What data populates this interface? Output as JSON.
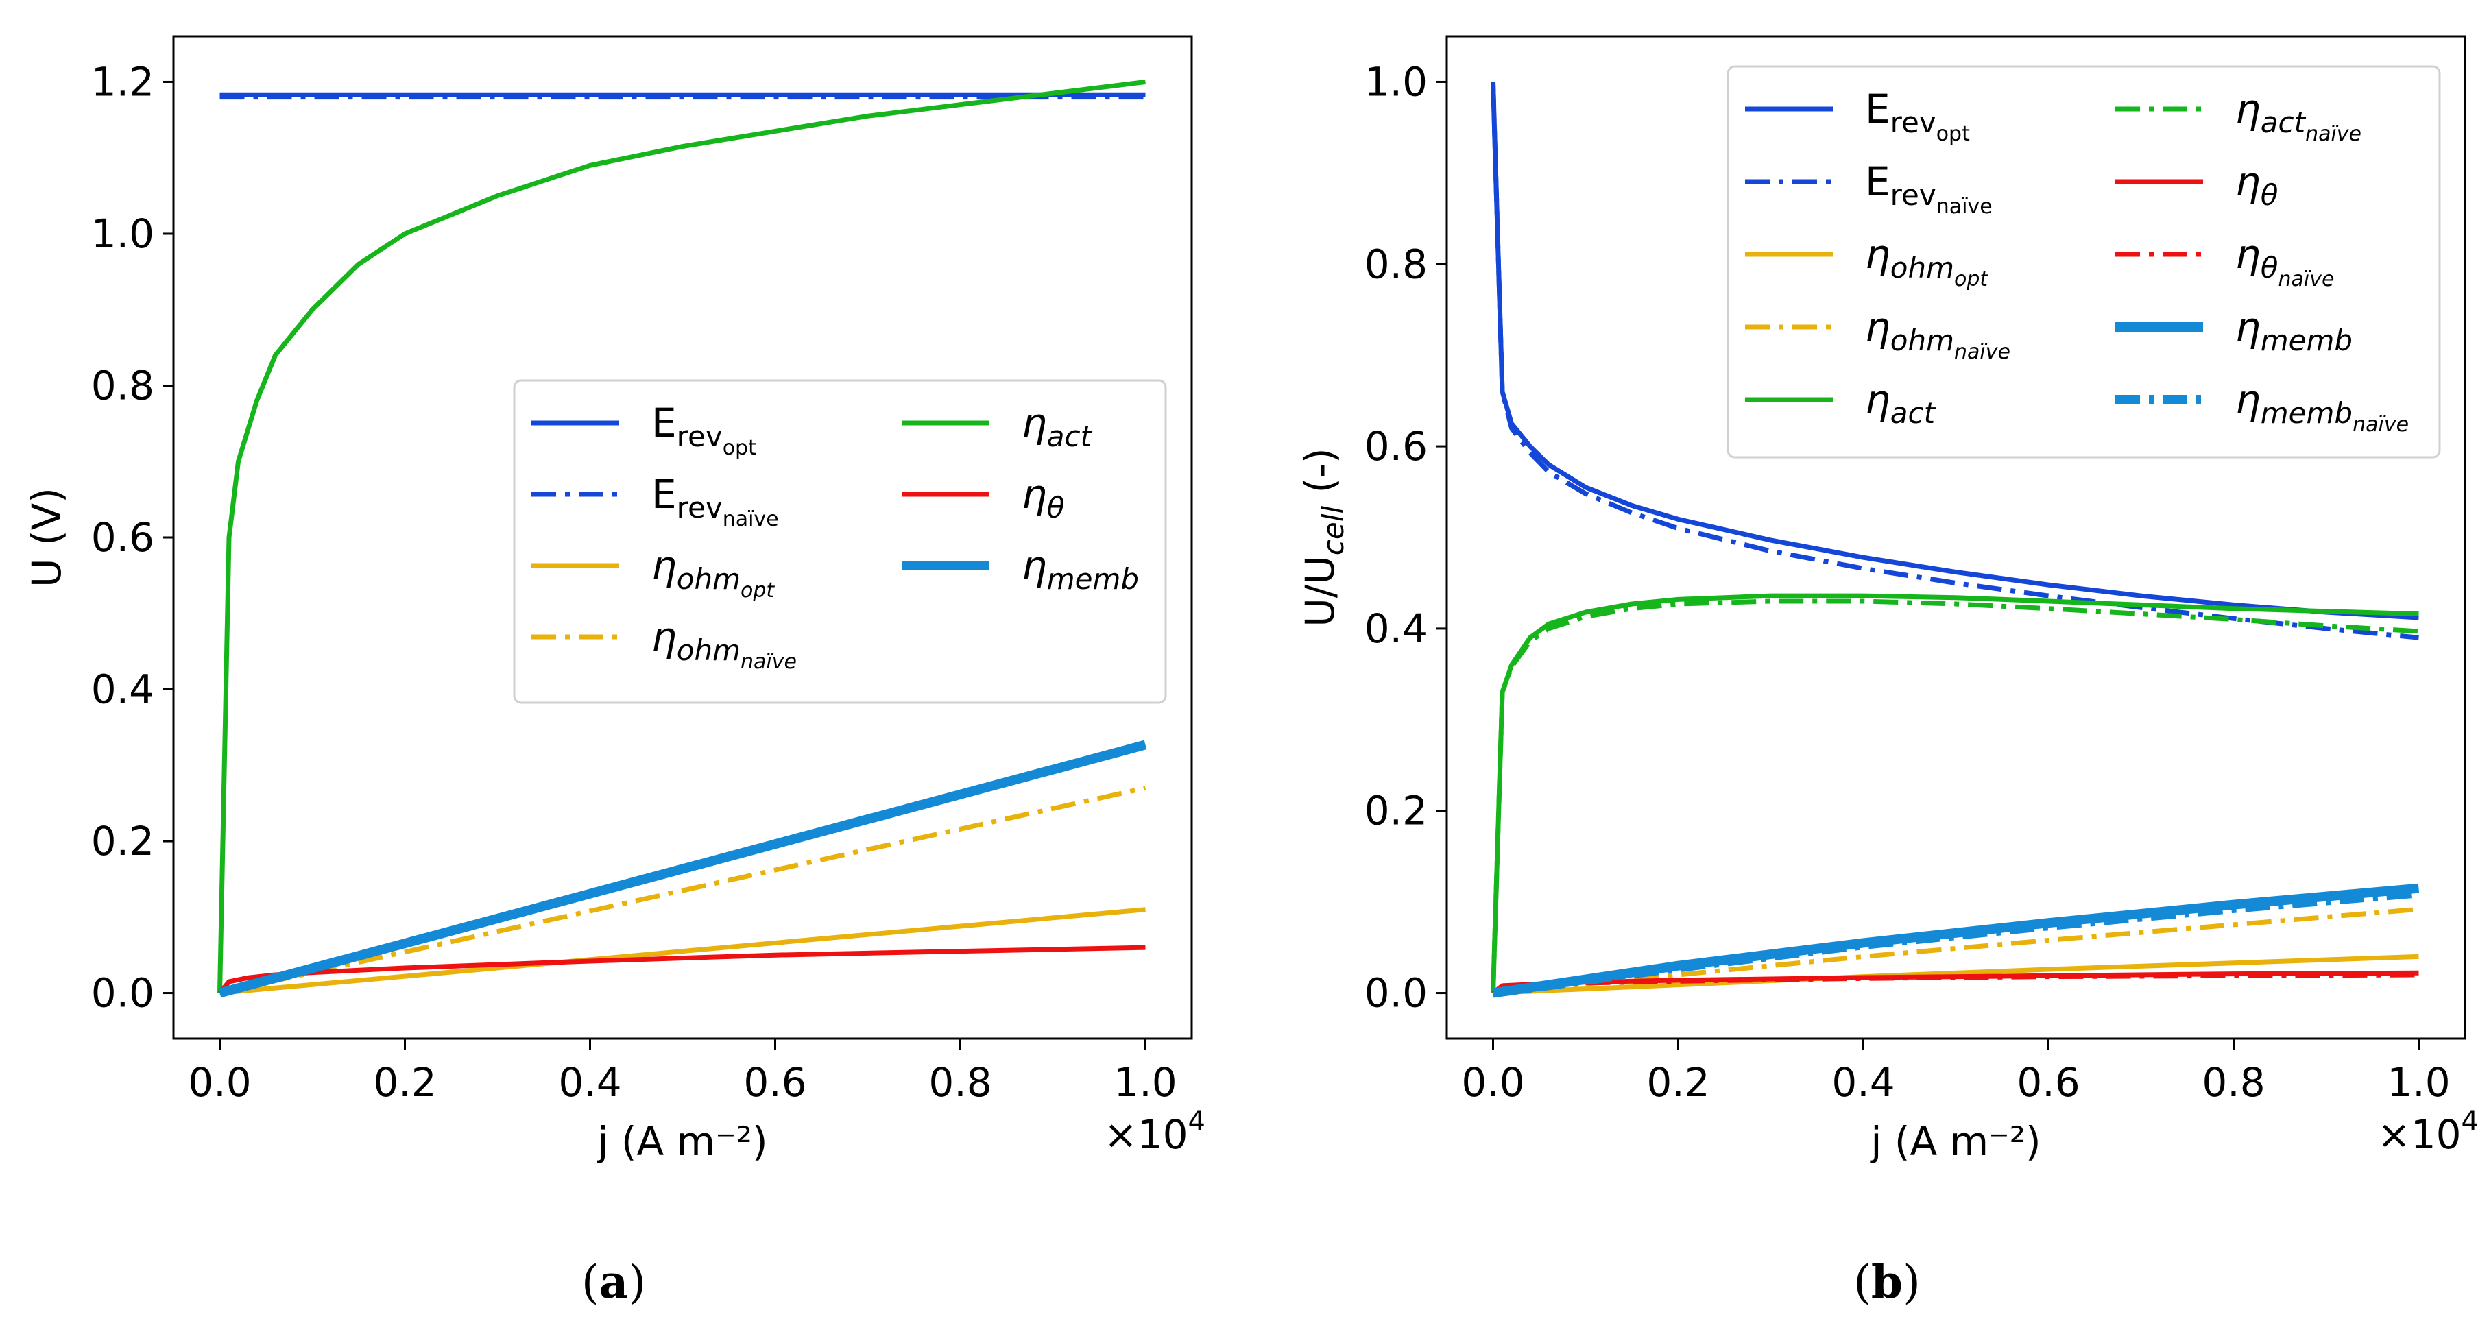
{
  "colors": {
    "e_rev": "#1446d8",
    "eta_ohm": "#e8b10b",
    "eta_act": "#16b51c",
    "eta_theta": "#ee1111",
    "eta_memb": "#148ad6"
  },
  "chart_data": [
    {
      "type": "line",
      "panel_label": "(a)",
      "caption": {
        "open": "(",
        "letter": "a",
        "close": ")"
      },
      "xlabel": "j (A m⁻²)",
      "ylabel": "U (V)",
      "x_multiplier": "×10",
      "x_multiplier_exp": "4",
      "xlim": [
        -0.05,
        1.05
      ],
      "ylim": [
        -0.06,
        1.26
      ],
      "xticks": [
        0.0,
        0.2,
        0.4,
        0.6,
        0.8,
        1.0
      ],
      "xtick_labels": [
        "0.0",
        "0.2",
        "0.4",
        "0.6",
        "0.8",
        "1.0"
      ],
      "yticks": [
        0.0,
        0.2,
        0.4,
        0.6,
        0.8,
        1.0,
        1.2
      ],
      "ytick_labels": [
        "0.0",
        "0.2",
        "0.4",
        "0.6",
        "0.8",
        "1.0",
        "1.2"
      ],
      "legend_position": "center-right",
      "legend": [
        {
          "series": "E_rev_opt",
          "base": "E",
          "sub": "rev",
          "subsub": "opt"
        },
        {
          "series": "E_rev_naive",
          "base": "E",
          "sub": "rev",
          "subsub": "naïve"
        },
        {
          "series": "eta_ohm_opt",
          "base": "η",
          "sub": "ohm",
          "subsub": "opt"
        },
        {
          "series": "eta_ohm_naive",
          "base": "η",
          "sub": "ohm",
          "subsub": "naïve"
        },
        {
          "series": "eta_act",
          "base": "η",
          "sub": "act",
          "subsub": ""
        },
        {
          "series": "eta_theta",
          "base": "η",
          "sub": "θ",
          "subsub": ""
        },
        {
          "series": "eta_memb",
          "base": "η",
          "sub": "memb",
          "subsub": ""
        }
      ],
      "series": [
        {
          "name": "E_rev_opt",
          "color_key": "e_rev",
          "style": "solid",
          "width": "normal",
          "x": [
            0.0,
            1.0
          ],
          "y": [
            1.183,
            1.183
          ]
        },
        {
          "name": "E_rev_naive",
          "color_key": "e_rev",
          "style": "dashdot",
          "width": "normal",
          "x": [
            0.0,
            1.0
          ],
          "y": [
            1.18,
            1.18
          ]
        },
        {
          "name": "eta_ohm_opt",
          "color_key": "eta_ohm",
          "style": "solid",
          "width": "normal",
          "x": [
            0.0,
            1.0
          ],
          "y": [
            0.0,
            0.11
          ]
        },
        {
          "name": "eta_ohm_naive",
          "color_key": "eta_ohm",
          "style": "dashdot",
          "width": "normal",
          "x": [
            0.0,
            1.0
          ],
          "y": [
            0.0,
            0.27
          ]
        },
        {
          "name": "eta_act",
          "color_key": "eta_act",
          "style": "solid",
          "width": "normal",
          "x": [
            0.0,
            0.01,
            0.02,
            0.04,
            0.06,
            0.1,
            0.15,
            0.2,
            0.3,
            0.4,
            0.5,
            0.6,
            0.7,
            0.8,
            0.9,
            1.0
          ],
          "y": [
            0.0,
            0.6,
            0.7,
            0.78,
            0.84,
            0.9,
            0.96,
            1.0,
            1.05,
            1.09,
            1.115,
            1.135,
            1.155,
            1.17,
            1.185,
            1.2
          ]
        },
        {
          "name": "eta_theta",
          "color_key": "eta_theta",
          "style": "solid",
          "width": "normal",
          "x": [
            0.0,
            0.01,
            0.03,
            0.06,
            0.1,
            0.2,
            0.4,
            0.6,
            0.8,
            1.0
          ],
          "y": [
            0.0,
            0.015,
            0.02,
            0.024,
            0.027,
            0.033,
            0.042,
            0.05,
            0.055,
            0.06
          ]
        },
        {
          "name": "eta_memb",
          "color_key": "eta_memb",
          "style": "solid",
          "width": "thick",
          "x": [
            0.0,
            1.0
          ],
          "y": [
            0.0,
            0.327
          ]
        }
      ]
    },
    {
      "type": "line",
      "panel_label": "(b)",
      "caption": {
        "open": "(",
        "letter": "b",
        "close": ")"
      },
      "xlabel": "j (A m⁻²)",
      "ylabel": "U/U",
      "ylabel_sub": "cell",
      "ylabel_tail": " (-)",
      "x_multiplier": "×10",
      "x_multiplier_exp": "4",
      "xlim": [
        -0.05,
        1.05
      ],
      "ylim": [
        -0.05,
        1.05
      ],
      "xticks": [
        0.0,
        0.2,
        0.4,
        0.6,
        0.8,
        1.0
      ],
      "xtick_labels": [
        "0.0",
        "0.2",
        "0.4",
        "0.6",
        "0.8",
        "1.0"
      ],
      "yticks": [
        0.0,
        0.2,
        0.4,
        0.6,
        0.8,
        1.0
      ],
      "ytick_labels": [
        "0.0",
        "0.2",
        "0.4",
        "0.6",
        "0.8",
        "1.0"
      ],
      "legend_position": "top-right",
      "legend": [
        {
          "series": "E_rev_opt",
          "base": "E",
          "sub": "rev",
          "subsub": "opt"
        },
        {
          "series": "E_rev_naive",
          "base": "E",
          "sub": "rev",
          "subsub": "naïve"
        },
        {
          "series": "eta_ohm_opt",
          "base": "η",
          "sub": "ohm",
          "subsub": "opt"
        },
        {
          "series": "eta_ohm_naive",
          "base": "η",
          "sub": "ohm",
          "subsub": "naïve"
        },
        {
          "series": "eta_act",
          "base": "η",
          "sub": "act",
          "subsub": ""
        },
        {
          "series": "eta_act_naive",
          "base": "η",
          "sub": "act",
          "subsub": "naïve"
        },
        {
          "series": "eta_theta",
          "base": "η",
          "sub": "θ",
          "subsub": ""
        },
        {
          "series": "eta_theta_naive",
          "base": "η",
          "sub": "θ",
          "subsub": "naïve"
        },
        {
          "series": "eta_memb",
          "base": "η",
          "sub": "memb",
          "subsub": ""
        },
        {
          "series": "eta_memb_naive",
          "base": "η",
          "sub": "memb",
          "subsub": "naïve"
        }
      ],
      "series": [
        {
          "name": "E_rev_opt",
          "color_key": "e_rev",
          "style": "solid",
          "width": "normal",
          "x": [
            0.0,
            0.01,
            0.02,
            0.04,
            0.06,
            0.1,
            0.15,
            0.2,
            0.3,
            0.4,
            0.5,
            0.6,
            0.7,
            0.8,
            0.9,
            1.0
          ],
          "y": [
            1.0,
            0.66,
            0.625,
            0.6,
            0.58,
            0.555,
            0.535,
            0.52,
            0.497,
            0.478,
            0.462,
            0.448,
            0.436,
            0.426,
            0.418,
            0.412
          ]
        },
        {
          "name": "E_rev_naive",
          "color_key": "e_rev",
          "style": "dashdot",
          "width": "normal",
          "x": [
            0.0,
            0.01,
            0.02,
            0.04,
            0.06,
            0.1,
            0.15,
            0.2,
            0.3,
            0.4,
            0.5,
            0.6,
            0.7,
            0.8,
            0.9,
            1.0
          ],
          "y": [
            1.0,
            0.66,
            0.62,
            0.593,
            0.572,
            0.548,
            0.527,
            0.51,
            0.485,
            0.466,
            0.45,
            0.436,
            0.423,
            0.411,
            0.4,
            0.39
          ]
        },
        {
          "name": "eta_ohm_opt",
          "color_key": "eta_ohm",
          "style": "solid",
          "width": "normal",
          "x": [
            0.0,
            0.2,
            0.4,
            0.6,
            0.8,
            1.0
          ],
          "y": [
            0.0,
            0.009,
            0.018,
            0.026,
            0.033,
            0.04
          ]
        },
        {
          "name": "eta_ohm_naive",
          "color_key": "eta_ohm",
          "style": "dashdot",
          "width": "normal",
          "x": [
            0.0,
            0.2,
            0.4,
            0.6,
            0.8,
            1.0
          ],
          "y": [
            0.0,
            0.02,
            0.04,
            0.058,
            0.075,
            0.092
          ]
        },
        {
          "name": "eta_act",
          "color_key": "eta_act",
          "style": "solid",
          "width": "normal",
          "x": [
            0.0,
            0.01,
            0.02,
            0.04,
            0.06,
            0.1,
            0.15,
            0.2,
            0.3,
            0.4,
            0.5,
            0.6,
            0.7,
            0.8,
            0.9,
            1.0
          ],
          "y": [
            0.0,
            0.33,
            0.36,
            0.39,
            0.405,
            0.418,
            0.427,
            0.432,
            0.436,
            0.436,
            0.434,
            0.43,
            0.426,
            0.422,
            0.419,
            0.416
          ]
        },
        {
          "name": "eta_act_naive",
          "color_key": "eta_act",
          "style": "dashdot",
          "width": "normal",
          "x": [
            0.0,
            0.01,
            0.02,
            0.04,
            0.06,
            0.1,
            0.15,
            0.2,
            0.3,
            0.4,
            0.5,
            0.6,
            0.7,
            0.8,
            0.9,
            1.0
          ],
          "y": [
            0.0,
            0.33,
            0.358,
            0.386,
            0.4,
            0.413,
            0.422,
            0.427,
            0.43,
            0.43,
            0.427,
            0.422,
            0.416,
            0.41,
            0.403,
            0.397
          ]
        },
        {
          "name": "eta_theta",
          "color_key": "eta_theta",
          "style": "solid",
          "width": "normal",
          "x": [
            0.0,
            0.01,
            0.05,
            0.1,
            0.2,
            0.4,
            0.6,
            0.8,
            1.0
          ],
          "y": [
            0.0,
            0.008,
            0.01,
            0.012,
            0.014,
            0.017,
            0.019,
            0.021,
            0.022
          ]
        },
        {
          "name": "eta_theta_naive",
          "color_key": "eta_theta",
          "style": "dashdot",
          "width": "normal",
          "x": [
            0.0,
            0.01,
            0.05,
            0.1,
            0.2,
            0.4,
            0.6,
            0.8,
            1.0
          ],
          "y": [
            0.0,
            0.007,
            0.009,
            0.011,
            0.013,
            0.016,
            0.018,
            0.019,
            0.02
          ]
        },
        {
          "name": "eta_memb",
          "color_key": "eta_memb",
          "style": "solid",
          "width": "thick",
          "x": [
            0.0,
            0.2,
            0.4,
            0.6,
            0.8,
            1.0
          ],
          "y": [
            0.0,
            0.03,
            0.055,
            0.077,
            0.097,
            0.115
          ]
        },
        {
          "name": "eta_memb_naive",
          "color_key": "eta_memb",
          "style": "dashdot",
          "width": "thick",
          "x": [
            0.0,
            0.2,
            0.4,
            0.6,
            0.8,
            1.0
          ],
          "y": [
            0.0,
            0.028,
            0.053,
            0.074,
            0.093,
            0.11
          ]
        }
      ]
    }
  ]
}
